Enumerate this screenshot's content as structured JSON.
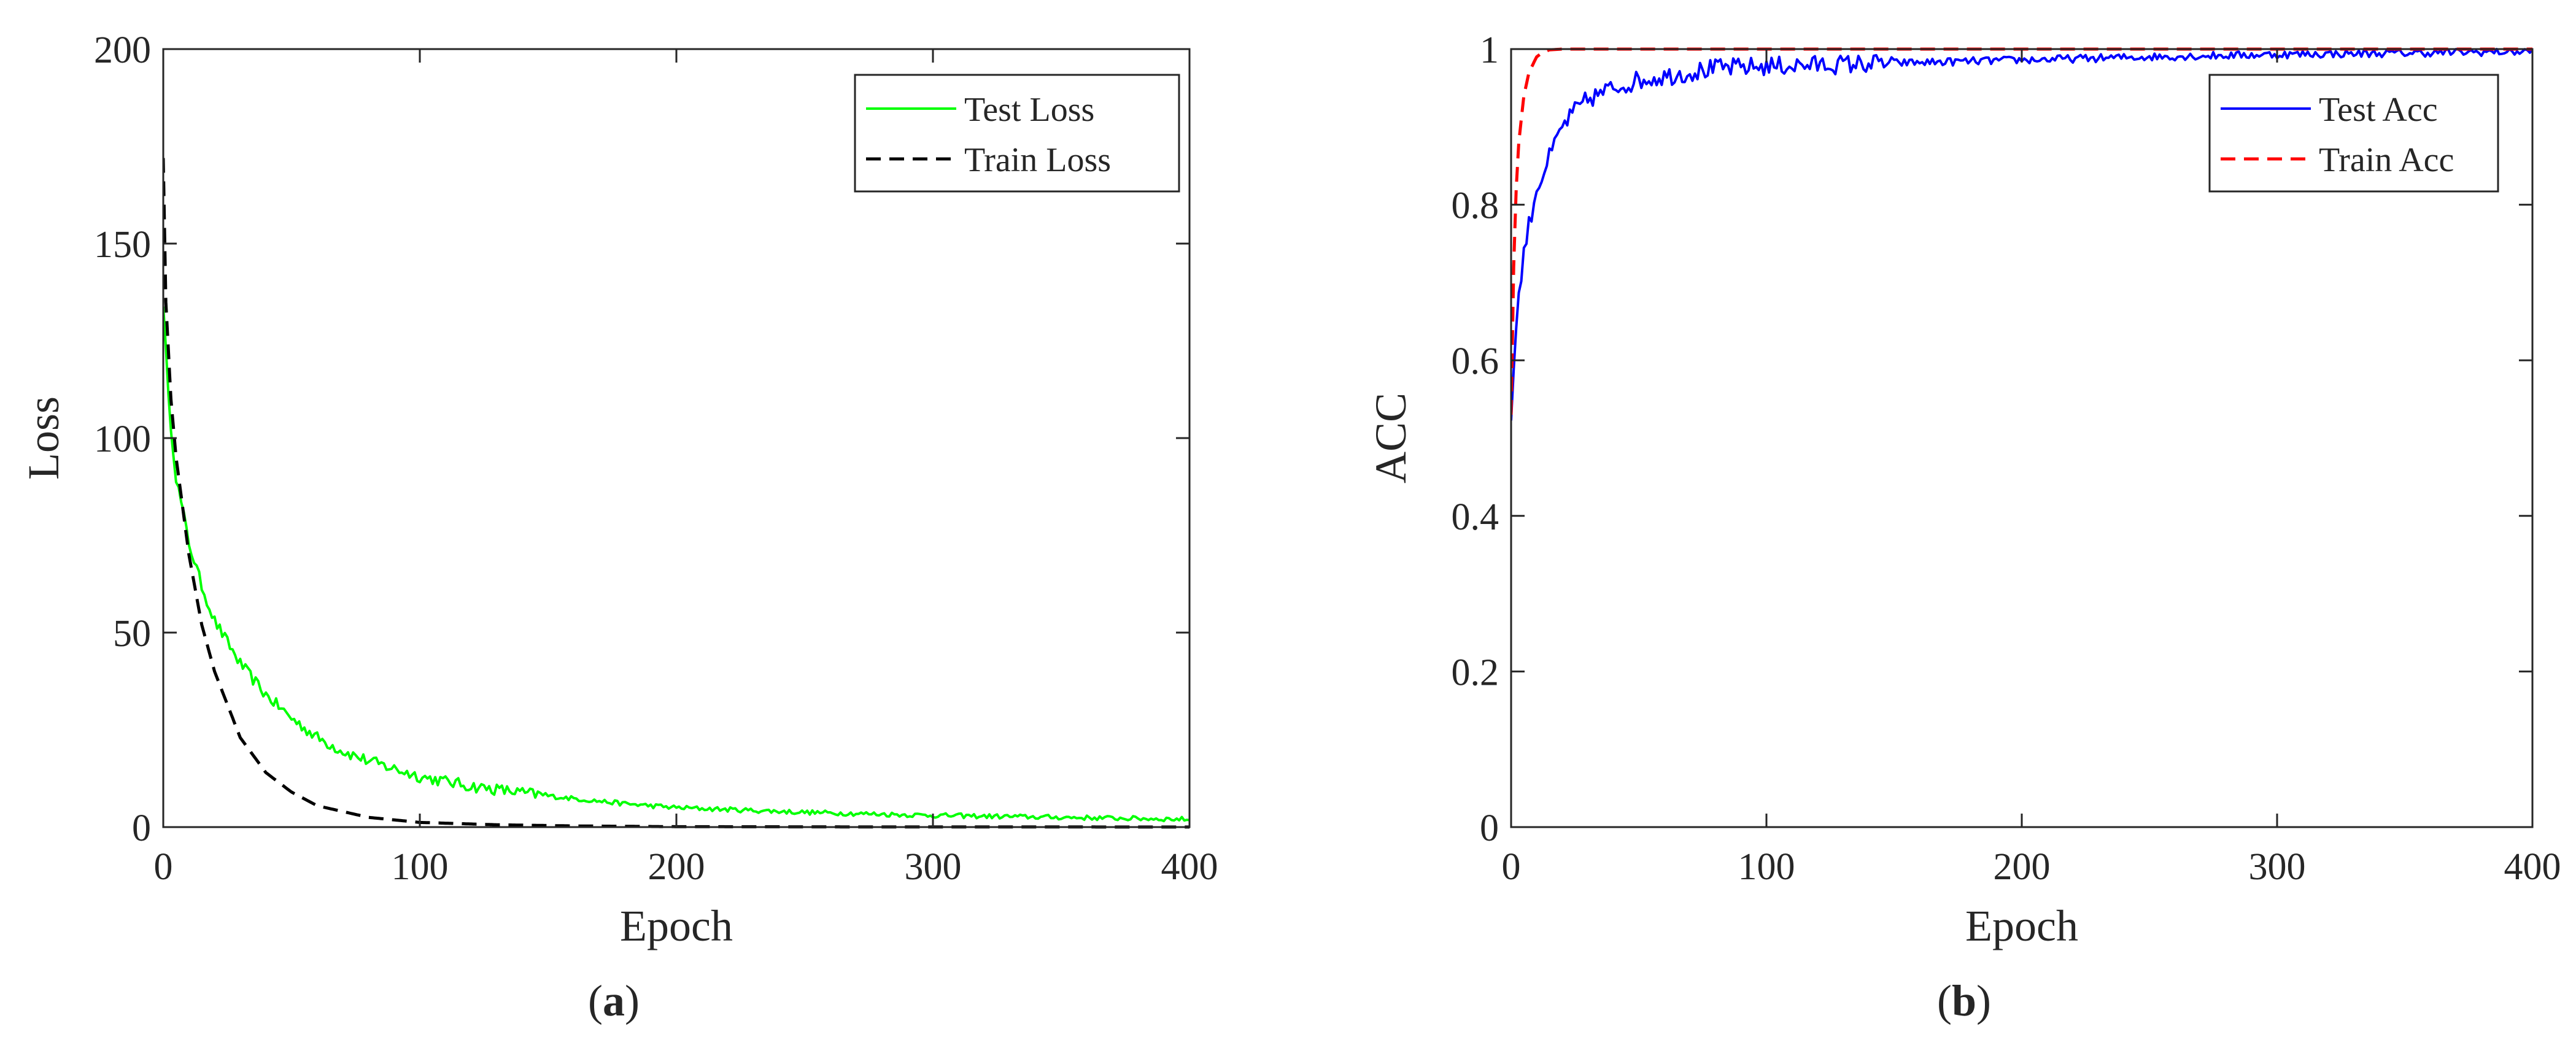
{
  "chart_data": [
    {
      "panel": "a",
      "type": "line",
      "caption_open": "(",
      "caption_letter": "a",
      "caption_close": ")",
      "xlabel": "Epoch",
      "ylabel": "Loss",
      "xlim": [
        0,
        400
      ],
      "ylim": [
        0,
        200
      ],
      "xticks": [
        0,
        100,
        200,
        300,
        400
      ],
      "yticks": [
        0,
        50,
        100,
        150,
        200
      ],
      "xtick_labels": [
        "0",
        "100",
        "200",
        "300",
        "400"
      ],
      "ytick_labels": [
        "0",
        "50",
        "100",
        "150",
        "200"
      ],
      "legend_position": "top-right",
      "series": [
        {
          "name": "Test Loss",
          "color": "#00ff00",
          "line_style": "solid",
          "noise": 0.6,
          "x": [
            0,
            2,
            5,
            10,
            15,
            20,
            30,
            40,
            50,
            60,
            70,
            80,
            100,
            120,
            150,
            180,
            200,
            250,
            300,
            350,
            400
          ],
          "y": [
            135,
            110,
            90,
            73,
            62,
            53,
            42,
            34,
            28,
            23,
            19.5,
            17,
            13,
            10.5,
            8,
            6,
            5,
            3.8,
            3,
            2.5,
            2
          ]
        },
        {
          "name": "Train Loss",
          "color": "#000000",
          "line_style": "dashed",
          "x": [
            0,
            1,
            3,
            5,
            10,
            15,
            20,
            30,
            40,
            50,
            60,
            80,
            100,
            130,
            160,
            200,
            300,
            400
          ],
          "y": [
            172,
            135,
            110,
            95,
            70,
            52,
            40,
            23,
            14,
            9,
            5.5,
            2.5,
            1.2,
            0.6,
            0.3,
            0.1,
            0.03,
            0.02
          ]
        }
      ]
    },
    {
      "panel": "b",
      "type": "line",
      "caption_open": "(",
      "caption_letter": "b",
      "caption_close": ")",
      "xlabel": "Epoch",
      "ylabel": "ACC",
      "xlim": [
        0,
        400
      ],
      "ylim": [
        0,
        1
      ],
      "xticks": [
        0,
        100,
        200,
        300,
        400
      ],
      "yticks": [
        0,
        0.2,
        0.4,
        0.6,
        0.8,
        1
      ],
      "xtick_labels": [
        "0",
        "100",
        "200",
        "300",
        "400"
      ],
      "ytick_labels": [
        "0",
        "0.2",
        "0.4",
        "0.6",
        "0.8",
        "1"
      ],
      "legend_position": "top-right",
      "series": [
        {
          "name": "Test Acc",
          "color": "#0000ff",
          "line_style": "solid",
          "noise": 0.005,
          "x": [
            0,
            1,
            3,
            5,
            8,
            10,
            15,
            20,
            25,
            30,
            40,
            50,
            60,
            70,
            80,
            100,
            150,
            200,
            250,
            300,
            350,
            400
          ],
          "y": [
            0.52,
            0.6,
            0.68,
            0.74,
            0.79,
            0.82,
            0.86,
            0.9,
            0.92,
            0.935,
            0.95,
            0.96,
            0.965,
            0.97,
            0.975,
            0.978,
            0.982,
            0.986,
            0.99,
            0.993,
            0.995,
            0.997
          ]
        },
        {
          "name": "Train Acc",
          "color": "#ff0000",
          "line_style": "dashed",
          "x": [
            0,
            1,
            2,
            3,
            5,
            7,
            10,
            12,
            15,
            20,
            400
          ],
          "y": [
            0.53,
            0.72,
            0.82,
            0.88,
            0.94,
            0.97,
            0.99,
            0.995,
            0.999,
            1.0,
            1.0
          ]
        }
      ]
    }
  ]
}
